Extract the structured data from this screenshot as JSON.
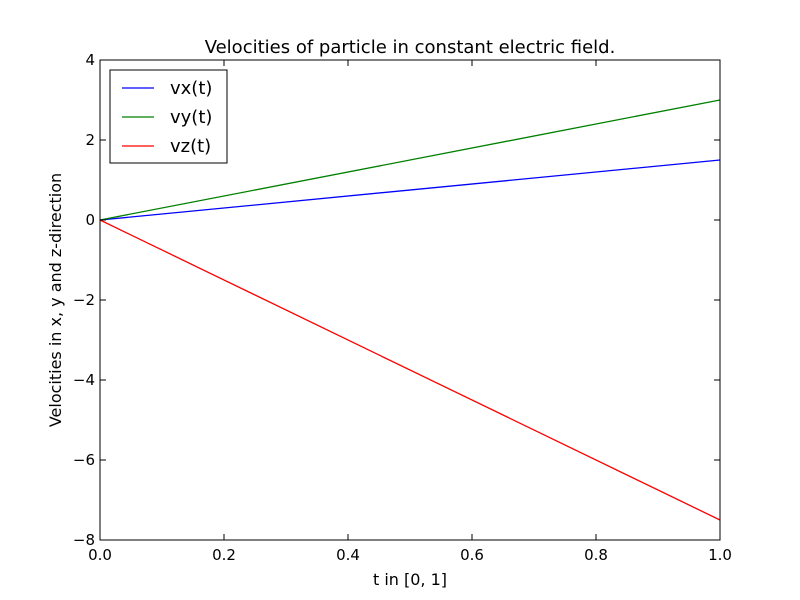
{
  "chart_data": {
    "type": "line",
    "title": "Velocities of particle in constant electric field.",
    "xlabel": "t in [0, 1]",
    "ylabel": "Velocities in x, y and z-direction",
    "xlim": [
      0.0,
      1.0
    ],
    "ylim": [
      -8,
      4
    ],
    "xticks": [
      0.0,
      0.2,
      0.4,
      0.6,
      0.8,
      1.0
    ],
    "xtick_labels": [
      "0.0",
      "0.2",
      "0.4",
      "0.6",
      "0.8",
      "1.0"
    ],
    "yticks": [
      -8,
      -6,
      -4,
      -2,
      0,
      2,
      4
    ],
    "ytick_labels": [
      "−8",
      "−6",
      "−4",
      "−2",
      "0",
      "2",
      "4"
    ],
    "grid": false,
    "legend_position": "top-left",
    "series": [
      {
        "name": "vx(t)",
        "color": "#0000ff",
        "x": [
          0.0,
          1.0
        ],
        "y": [
          0.0,
          1.5
        ]
      },
      {
        "name": "vy(t)",
        "color": "#008000",
        "x": [
          0.0,
          1.0
        ],
        "y": [
          0.0,
          3.0
        ]
      },
      {
        "name": "vz(t)",
        "color": "#ff0000",
        "x": [
          0.0,
          1.0
        ],
        "y": [
          0.0,
          -7.5
        ]
      }
    ]
  }
}
